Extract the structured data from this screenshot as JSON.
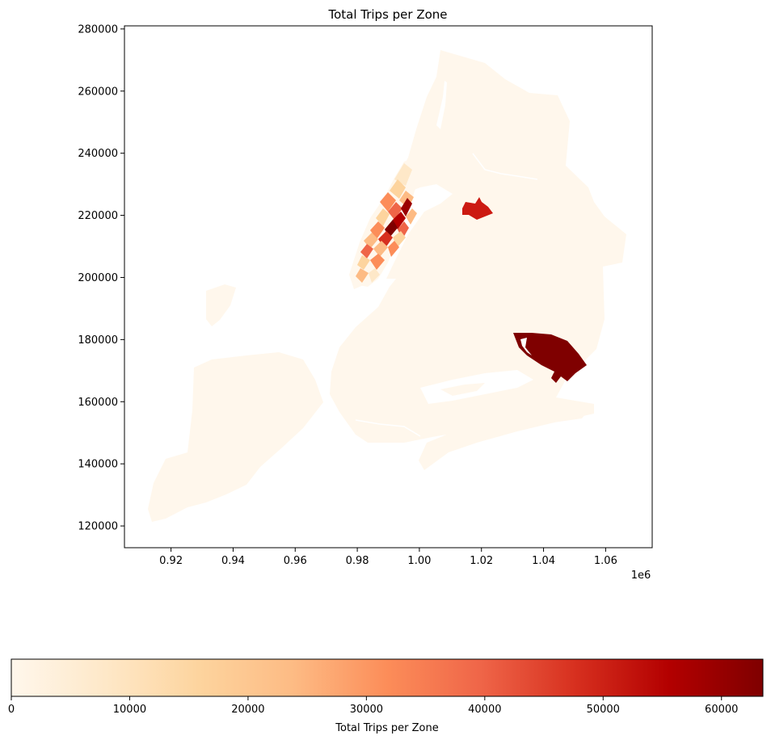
{
  "title": "Total Trips per Zone",
  "map": {
    "x_ticks": [
      "0.92",
      "0.94",
      "0.96",
      "0.98",
      "1.00",
      "1.02",
      "1.04",
      "1.06"
    ],
    "x_tick_values": [
      920000,
      940000,
      960000,
      980000,
      1000000,
      1020000,
      1040000,
      1060000
    ],
    "x_offset_label": "1e6",
    "y_ticks": [
      "120000",
      "140000",
      "160000",
      "180000",
      "200000",
      "220000",
      "240000",
      "260000",
      "280000"
    ],
    "y_tick_values": [
      120000,
      140000,
      160000,
      180000,
      200000,
      220000,
      240000,
      260000,
      280000
    ],
    "xlim": [
      905000,
      1075000
    ],
    "ylim": [
      113000,
      281000
    ],
    "colormap": "OrRd",
    "base_zone_color": "#fff7ec",
    "highlight_colors": {
      "jfk_airport": "#7f0000",
      "laguardia_airport": "#cc1a12",
      "midtown_peak": "#9b0000"
    }
  },
  "colorbar": {
    "label": "Total Trips per Zone",
    "ticks": [
      "0",
      "10000",
      "20000",
      "30000",
      "40000",
      "50000",
      "60000"
    ],
    "tick_values": [
      0,
      10000,
      20000,
      30000,
      40000,
      50000,
      60000
    ],
    "vmin": 0,
    "vmax": 63500,
    "stops": [
      "#fff7ec",
      "#fee8c8",
      "#fdd49e",
      "#fdbb84",
      "#fc8d59",
      "#ef6548",
      "#d7301f",
      "#b30000",
      "#7f0000"
    ]
  }
}
